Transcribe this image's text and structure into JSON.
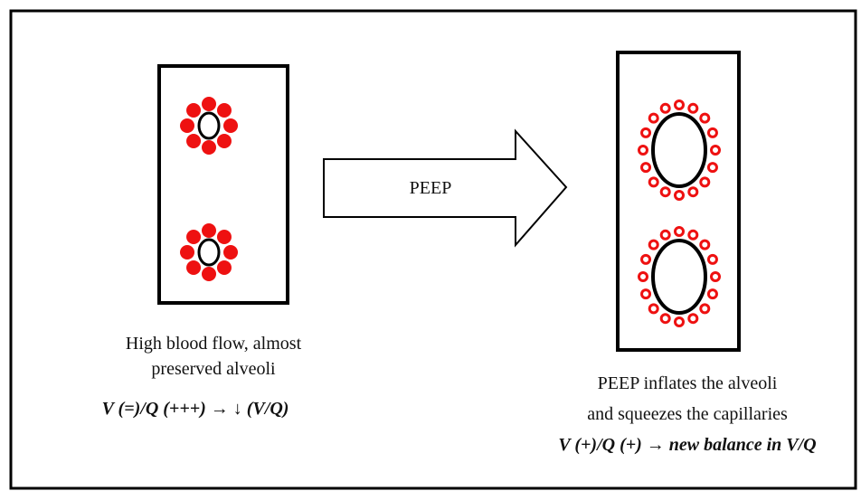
{
  "left": {
    "caption": [
      "High blood flow, almost",
      "preserved alveoli"
    ],
    "formula": "V (=)/Q (+++) → ↓ (V/Q)"
  },
  "arrow": {
    "label": "PEEP"
  },
  "right": {
    "caption": [
      "PEEP inflates the alveoli",
      "and squeezes the capillaries"
    ],
    "formula": "V (+)/Q (+) → new balance in V/Q"
  }
}
